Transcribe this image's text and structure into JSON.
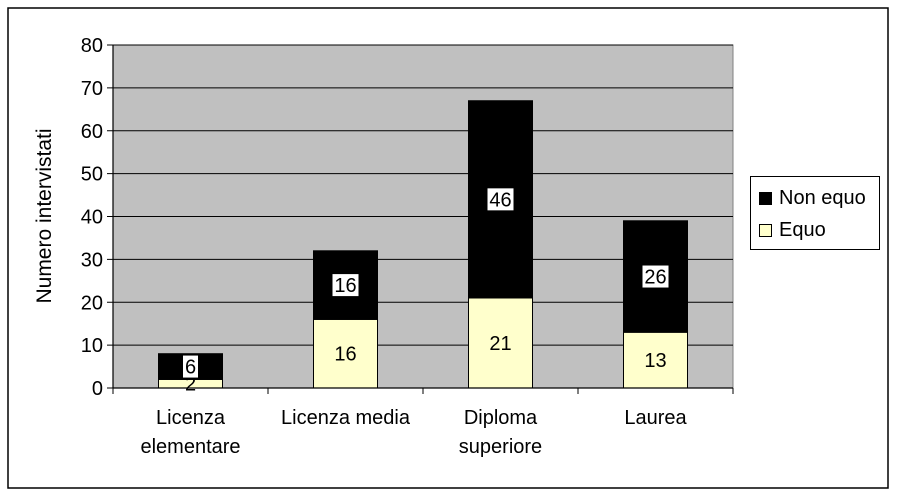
{
  "chart_data": {
    "type": "bar",
    "stacked": true,
    "categories": [
      "Licenza\nelementare",
      "Licenza media",
      "Diploma\nsuperiore",
      "Laurea"
    ],
    "series": [
      {
        "name": "Equo",
        "values": [
          2,
          16,
          21,
          13
        ],
        "color": "#ffffcc"
      },
      {
        "name": "Non equo",
        "values": [
          6,
          16,
          46,
          26
        ],
        "color": "#000000"
      }
    ],
    "title": "",
    "xlabel": "",
    "ylabel": "Numero intervistati",
    "ylim": [
      0,
      80
    ],
    "yticks": [
      0,
      10,
      20,
      30,
      40,
      50,
      60,
      70,
      80
    ],
    "grid": true,
    "legend_position": "right",
    "plot_background": "#c0c0c0"
  },
  "legend": {
    "items": [
      {
        "label": "Non equo",
        "color": "#000000"
      },
      {
        "label": "Equo",
        "color": "#ffffcc"
      }
    ]
  }
}
